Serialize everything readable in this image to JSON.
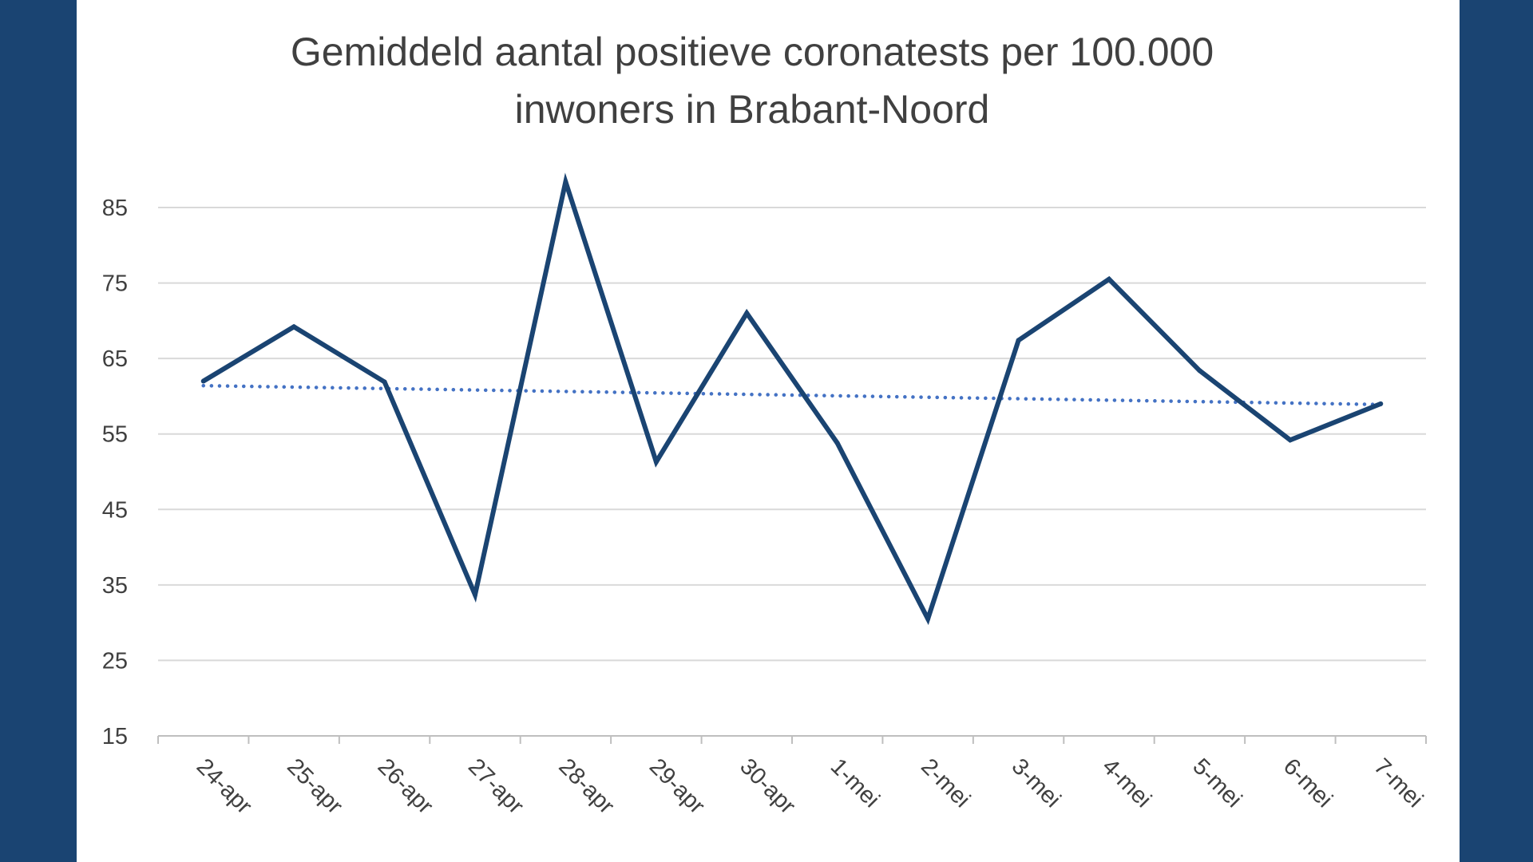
{
  "colors": {
    "background": "#1a4472",
    "panel": "#ffffff",
    "series": "#1a4472",
    "trend": "#4472c4",
    "grid": "#d9d9d9",
    "text": "#404040"
  },
  "chart_data": {
    "type": "line",
    "title_lines": [
      "Gemiddeld aantal positieve coronatests per 100.000",
      "inwoners in Brabant-Noord"
    ],
    "xlabel": "",
    "ylabel": "",
    "categories": [
      "24-apr",
      "25-apr",
      "26-apr",
      "27-apr",
      "28-apr",
      "29-apr",
      "30-apr",
      "1-mei",
      "2-mei",
      "3-mei",
      "4-mei",
      "5-mei",
      "6-mei",
      "7-mei"
    ],
    "series": [
      {
        "values": [
          62,
          69.2,
          61.9,
          33.7,
          88.4,
          51.3,
          71,
          53.8,
          30.5,
          67.4,
          75.5,
          63.4,
          54.2,
          59
        ]
      }
    ],
    "trendline": {
      "type": "linear",
      "style": "dotted",
      "start": 61.4,
      "end": 58.9
    },
    "yticks": [
      15,
      25,
      35,
      45,
      55,
      65,
      75,
      85
    ],
    "ylim": [
      15,
      88.5
    ],
    "grid": true,
    "legend": "none",
    "xtick_rotation": 45
  }
}
